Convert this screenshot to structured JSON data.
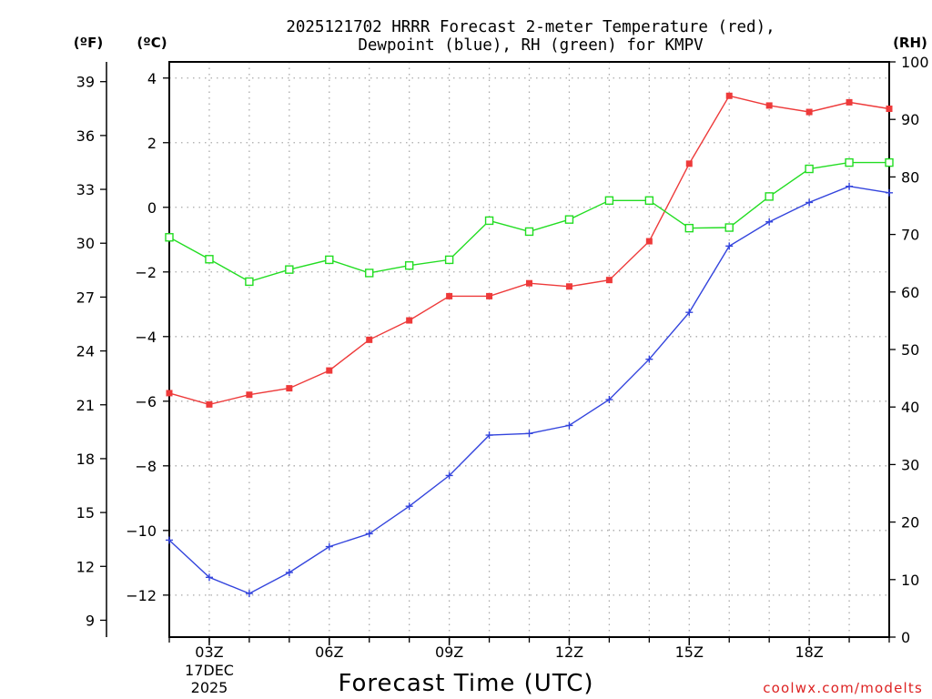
{
  "chart_data": {
    "type": "line",
    "title_line1": "2025121702 HRRR Forecast 2-meter Temperature (red),",
    "title_line2": "Dewpoint (blue), RH (green) for KMPV",
    "xlabel": "Forecast Time (UTC)",
    "credit": "coolwx.com/modelts",
    "units": {
      "fahrenheit": "(ºF)",
      "celsius": "(ºC)",
      "rh": "(RH)"
    },
    "hours": [
      2,
      3,
      4,
      5,
      6,
      7,
      8,
      9,
      10,
      11,
      12,
      13,
      14,
      15,
      16,
      17,
      18,
      19,
      20
    ],
    "x_ticks": [
      {
        "hour": 3,
        "label": "03Z"
      },
      {
        "hour": 6,
        "label": "06Z"
      },
      {
        "hour": 9,
        "label": "09Z"
      },
      {
        "hour": 12,
        "label": "12Z"
      },
      {
        "hour": 15,
        "label": "15Z"
      },
      {
        "hour": 18,
        "label": "18Z"
      }
    ],
    "date_day": "17DEC",
    "date_year": "2025",
    "celsius_axis": {
      "min": -13.3,
      "max": 4.5,
      "ticks": [
        4,
        2,
        0,
        -2,
        -4,
        -6,
        -8,
        -10,
        -12
      ]
    },
    "fahrenheit_ticks": [
      39,
      36,
      33,
      30,
      27,
      24,
      21,
      18,
      15,
      12,
      9
    ],
    "rh_axis": {
      "min": 0,
      "max": 100,
      "ticks": [
        100,
        90,
        80,
        70,
        60,
        50,
        40,
        30,
        20,
        10,
        0
      ]
    },
    "series": [
      {
        "name": "Temperature",
        "axis": "celsius",
        "color": "#ee3a3a",
        "marker": "filled-square",
        "values": [
          -5.75,
          -6.1,
          -5.8,
          -5.6,
          -5.05,
          -4.1,
          -3.5,
          -2.75,
          -2.75,
          -2.35,
          -2.45,
          -2.25,
          -1.05,
          1.35,
          3.45,
          3.15,
          2.95,
          3.25,
          3.05
        ]
      },
      {
        "name": "Dewpoint",
        "axis": "celsius",
        "color": "#3344dd",
        "marker": "plus",
        "values": [
          -10.3,
          -11.45,
          -11.95,
          -11.3,
          -10.5,
          -10.1,
          -9.25,
          -8.3,
          -7.05,
          -7.0,
          -6.75,
          -5.95,
          -4.7,
          -3.25,
          -1.2,
          -0.45,
          0.15,
          0.65,
          0.45
        ]
      },
      {
        "name": "RH",
        "axis": "rh",
        "color": "#22dd22",
        "marker": "open-square",
        "values": [
          69.5,
          65.7,
          61.8,
          63.9,
          65.6,
          63.3,
          64.6,
          65.6,
          72.4,
          70.5,
          72.6,
          75.9,
          75.9,
          71.1,
          71.2,
          76.6,
          81.4,
          82.5,
          82.5
        ]
      }
    ]
  }
}
